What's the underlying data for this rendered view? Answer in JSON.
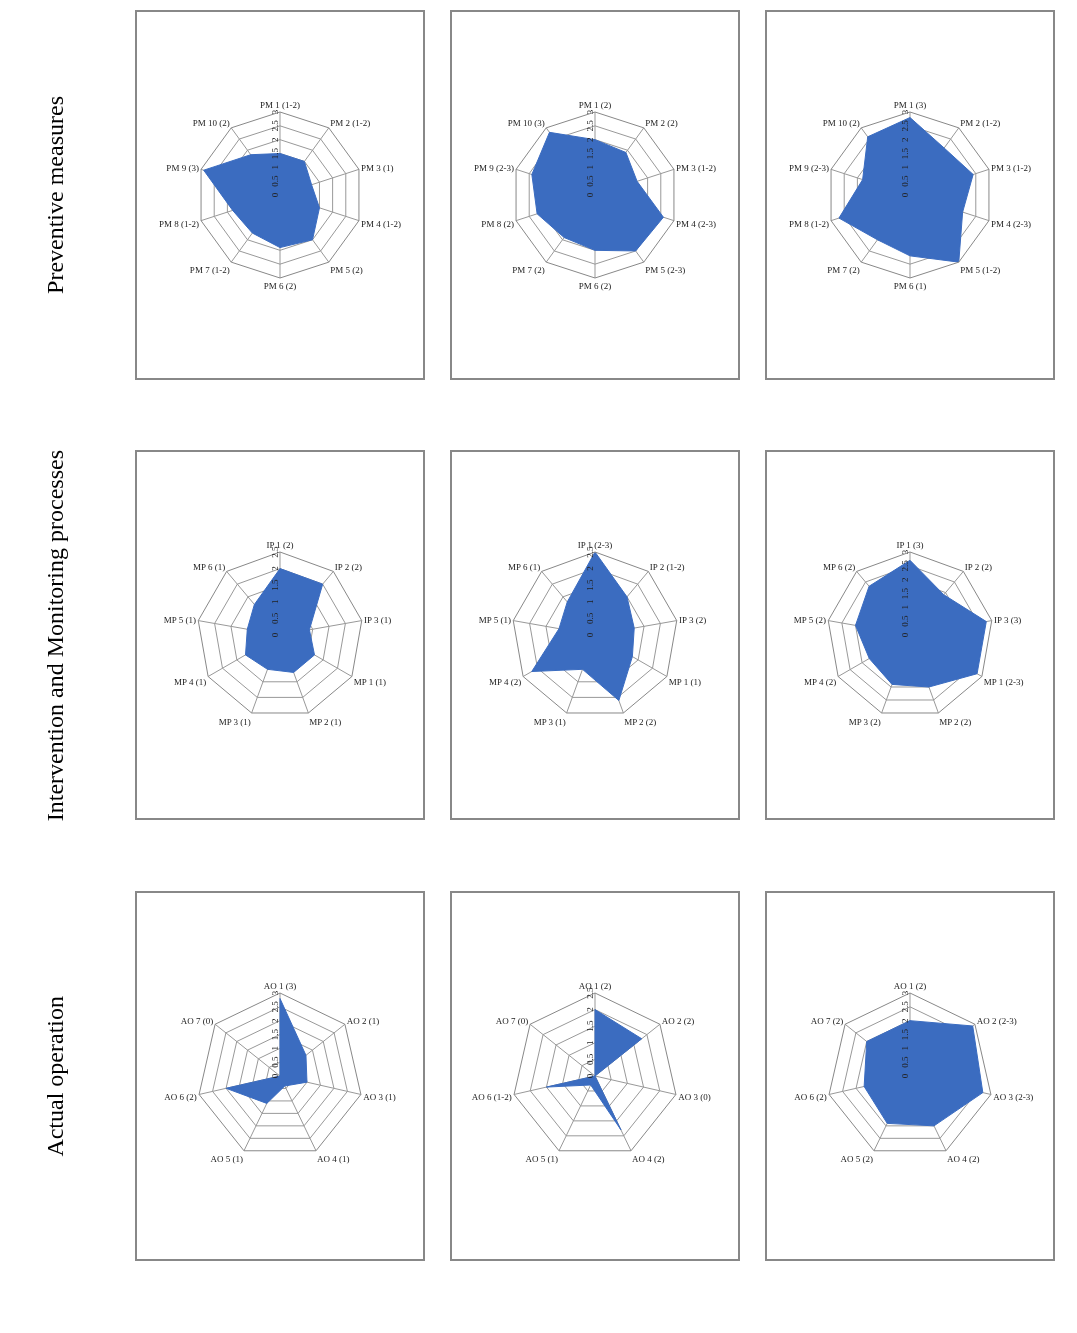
{
  "chart_data": [
    {
      "type": "radar",
      "ylabel": "Preventive measures",
      "categories": [
        "PM 1 (1-2)",
        "PM 2 (1-2)",
        "PM 3 (1)",
        "PM 4 (1-2)",
        "PM 5 (2)",
        "PM 6 (2)",
        "PM 7 (1-2)",
        "PM 8 (1-2)",
        "PM 9 (3)",
        "PM 10 (2)"
      ],
      "series": [
        {
          "color": "#3b6cc0",
          "values": [
            1.5,
            1.5,
            1.2,
            1.5,
            2,
            1.9,
            1.7,
            1.8,
            2.9,
            1.8
          ]
        }
      ],
      "ylim": [
        0,
        3
      ],
      "yticks": [
        0,
        0.5,
        1,
        1.5,
        2,
        2.5,
        3
      ],
      "grid": true
    },
    {
      "type": "radar",
      "categories": [
        "PM 1 (2)",
        "PM 2 (2)",
        "PM 3 (1-2)",
        "PM 4 (2-3)",
        "PM 5 (2-3)",
        "PM 6 (2)",
        "PM 7 (2)",
        "PM 8 (2)",
        "PM 9 (2-3)",
        "PM 10 (3)"
      ],
      "series": [
        {
          "color": "#3b6cc0",
          "values": [
            2,
            1.9,
            1.6,
            2.6,
            2.5,
            2,
            1.9,
            2.2,
            2.4,
            2.8
          ]
        }
      ],
      "ylim": [
        0,
        3
      ],
      "yticks": [
        0,
        0.5,
        1,
        1.5,
        2,
        2.5,
        3
      ],
      "grid": true
    },
    {
      "type": "radar",
      "categories": [
        "PM 1 (3)",
        "PM 2 (1-2)",
        "PM 3 (1-2)",
        "PM 4 (2-3)",
        "PM 5 (1-2)",
        "PM 6 (1)",
        "PM 7 (2)",
        "PM 8 (1-2)",
        "PM 9 (2-3)",
        "PM 10 (2)"
      ],
      "series": [
        {
          "color": "#3b6cc0",
          "values": [
            2.8,
            2.1,
            2.4,
            2,
            3,
            2.2,
            2,
            2.7,
            1.8,
            2.6
          ]
        }
      ],
      "ylim": [
        0,
        3
      ],
      "yticks": [
        0,
        0.5,
        1,
        1.5,
        2,
        2.5,
        3
      ],
      "grid": true
    },
    {
      "type": "radar",
      "ylabel": "Intervention and Monitoring processes",
      "categories": [
        "IP 1 (2)",
        "IP 2 (2)",
        "IP 3 (1)",
        "MP 1 (1)",
        "MP 2 (1)",
        "MP 3 (1)",
        "MP 4 (1)",
        "MP 5 (1)",
        "MP 6 (1)"
      ],
      "series": [
        {
          "color": "#3b6cc0",
          "values": [
            2,
            2,
            0.9,
            1.2,
            1.2,
            1.1,
            1.2,
            1,
            1.2
          ]
        }
      ],
      "ylim": [
        0,
        2.5
      ],
      "yticks": [
        0,
        0.5,
        1,
        1.5,
        2,
        2.5
      ],
      "grid": true
    },
    {
      "type": "radar",
      "categories": [
        "IP 1 (2-3)",
        "IP 2 (1-2)",
        "IP 3 (2)",
        "MP 1 (1)",
        "MP 2 (2)",
        "MP 3 (1)",
        "MP 4 (2)",
        "MP 5 (1)",
        "MP 6 (1)"
      ],
      "series": [
        {
          "color": "#3b6cc0",
          "values": [
            2.5,
            1.5,
            1.2,
            1.3,
            2.1,
            1.1,
            2.2,
            1.1,
            1.3
          ]
        }
      ],
      "ylim": [
        0,
        2.5
      ],
      "yticks": [
        0,
        0.5,
        1,
        1.5,
        2,
        2.5
      ],
      "grid": true
    },
    {
      "type": "radar",
      "categories": [
        "IP 1 (3)",
        "IP 2 (2)",
        "IP 3 (3)",
        "MP 1 (2-3)",
        "MP 2 (2)",
        "MP 3 (2)",
        "MP 4 (2)",
        "MP 5 (2)",
        "MP 6 (2)"
      ],
      "series": [
        {
          "color": "#3b6cc0",
          "values": [
            2.7,
            1.9,
            2.8,
            2.8,
            2,
            1.9,
            1.7,
            2,
            2.3
          ]
        }
      ],
      "ylim": [
        0,
        3
      ],
      "yticks": [
        0,
        0.5,
        1,
        1.5,
        2,
        2.5,
        3
      ],
      "grid": true
    },
    {
      "type": "radar",
      "ylabel": "Actual operation",
      "categories": [
        "AO 1 (3)",
        "AO 2 (1)",
        "AO 3 (1)",
        "AO 4 (1)",
        "AO 5 (1)",
        "AO 6 (2)",
        "AO 7 (0)"
      ],
      "series": [
        {
          "color": "#3b6cc0",
          "values": [
            2.8,
            1.2,
            1,
            0.4,
            1.1,
            2,
            0
          ]
        }
      ],
      "ylim": [
        0,
        3
      ],
      "yticks": [
        0,
        0.5,
        1,
        1.5,
        2,
        2.5,
        3
      ],
      "grid": true
    },
    {
      "type": "radar",
      "categories": [
        "AO 1 (2)",
        "AO 2 (2)",
        "AO 3 (0)",
        "AO 4 (2)",
        "AO 5 (1)",
        "AO 6 (1-2)",
        "AO 7 (0)"
      ],
      "series": [
        {
          "color": "#3b6cc0",
          "values": [
            2,
            1.8,
            0,
            1.8,
            0.3,
            1.5,
            0
          ]
        }
      ],
      "ylim": [
        0,
        2.5
      ],
      "yticks": [
        0,
        0.5,
        1,
        1.5,
        2,
        2.5
      ],
      "grid": true
    },
    {
      "type": "radar",
      "categories": [
        "AO 1 (2)",
        "AO 2 (2-3)",
        "AO 3 (2-3)",
        "AO 4 (2)",
        "AO 5 (2)",
        "AO 6 (2)",
        "AO 7 (2)"
      ],
      "series": [
        {
          "color": "#3b6cc0",
          "values": [
            2,
            2.9,
            2.7,
            2,
            1.9,
            1.7,
            2
          ]
        }
      ],
      "ylim": [
        0,
        3
      ],
      "yticks": [
        0,
        0.5,
        1,
        1.5,
        2,
        2.5,
        3
      ],
      "grid": true
    }
  ]
}
